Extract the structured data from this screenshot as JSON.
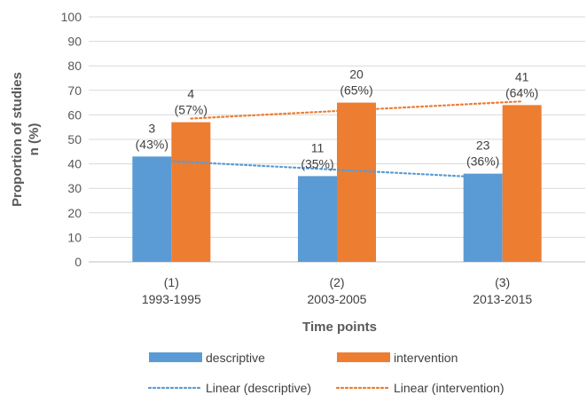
{
  "chart_data": {
    "type": "bar",
    "categories": [
      [
        "(1)",
        "1993-1995"
      ],
      [
        "(2)",
        "2003-2005"
      ],
      [
        "(3)",
        "2013-2015"
      ]
    ],
    "series": [
      {
        "name": "descriptive",
        "color": "#5B9BD5",
        "values": [
          43,
          35,
          36
        ],
        "labels": [
          [
            "3",
            "(43%)"
          ],
          [
            "11",
            "(35%)"
          ],
          [
            "23",
            "(36%)"
          ]
        ]
      },
      {
        "name": "intervention",
        "color": "#ED7D31",
        "values": [
          57,
          65,
          64
        ],
        "labels": [
          [
            "4",
            "(57%)"
          ],
          [
            "20",
            "(65%)"
          ],
          [
            "41",
            "(64%)"
          ]
        ]
      }
    ],
    "trendlines": [
      {
        "name": "Linear (descriptive)",
        "series": "descriptive",
        "color": "#5B9BD5",
        "style": "dotted"
      },
      {
        "name": "Linear (intervention)",
        "series": "intervention",
        "color": "#ED7D31",
        "style": "dotted"
      }
    ],
    "xlabel": "Time points",
    "ylabel": [
      "Proportion of studies",
      "n (%)"
    ],
    "ylim": [
      0,
      100
    ],
    "yticks": [
      0,
      10,
      20,
      30,
      40,
      50,
      60,
      70,
      80,
      90,
      100
    ],
    "grid": true,
    "legend": "bottom"
  }
}
